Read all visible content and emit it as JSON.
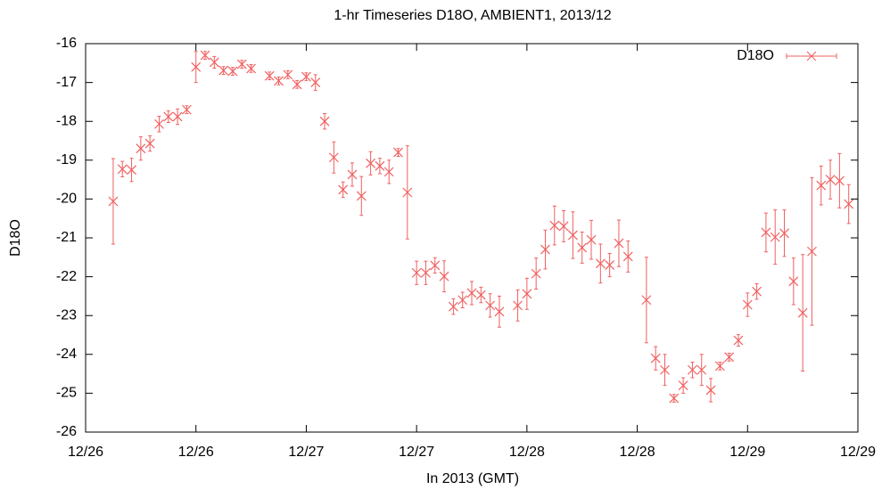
{
  "chart_data": {
    "type": "errorbar",
    "title": "1-hr Timeseries D18O, AMBIENT1, 2013/12",
    "xlabel": "In 2013 (GMT)",
    "ylabel": "D18O",
    "xlim": [
      0,
      84
    ],
    "xticks": [
      {
        "value": 0,
        "label": "12/26"
      },
      {
        "value": 12,
        "label": "12/26"
      },
      {
        "value": 24,
        "label": "12/27"
      },
      {
        "value": 36,
        "label": "12/27"
      },
      {
        "value": 48,
        "label": "12/28"
      },
      {
        "value": 60,
        "label": "12/28"
      },
      {
        "value": 72,
        "label": "12/29"
      },
      {
        "value": 84,
        "label": "12/29"
      }
    ],
    "ylim": [
      -26,
      -16
    ],
    "yticks": [
      -26,
      -25,
      -24,
      -23,
      -22,
      -21,
      -20,
      -19,
      -18,
      -17,
      -16
    ],
    "grid": false,
    "legend": "upper right",
    "series": [
      {
        "name": "D18O",
        "color": "#f06060",
        "x": [
          3,
          4,
          5,
          6,
          7,
          8,
          9,
          10,
          11,
          12,
          13,
          14,
          15,
          16,
          17,
          18,
          20,
          21,
          22,
          23,
          24,
          25,
          26,
          27,
          28,
          29,
          30,
          31,
          32,
          33,
          34,
          35,
          36,
          37,
          38,
          39,
          40,
          41,
          42,
          43,
          44,
          45,
          47,
          48,
          49,
          50,
          51,
          52,
          53,
          54,
          55,
          56,
          57,
          58,
          59,
          61,
          62,
          63,
          64,
          65,
          66,
          67,
          68,
          69,
          70,
          71,
          72,
          73,
          74,
          75,
          76,
          77,
          78,
          79,
          80,
          81,
          82,
          83
        ],
        "values": [
          -20.06,
          -19.23,
          -19.25,
          -18.7,
          -18.57,
          -18.07,
          -17.88,
          -17.88,
          -17.7,
          -16.6,
          -16.3,
          -16.48,
          -16.69,
          -16.71,
          -16.53,
          -16.64,
          -16.83,
          -16.96,
          -16.8,
          -17.05,
          -16.85,
          -17.0,
          -18.0,
          -18.93,
          -19.76,
          -19.37,
          -19.92,
          -19.08,
          -19.15,
          -19.3,
          -18.8,
          -19.83,
          -21.9,
          -21.9,
          -21.71,
          -21.99,
          -22.77,
          -22.6,
          -22.42,
          -22.47,
          -22.74,
          -22.9,
          -22.74,
          -22.44,
          -21.92,
          -21.3,
          -20.68,
          -20.7,
          -20.93,
          -21.25,
          -21.05,
          -21.66,
          -21.7,
          -21.14,
          -21.48,
          -22.6,
          -24.1,
          -24.4,
          -25.13,
          -24.8,
          -24.4,
          -24.4,
          -24.92,
          -24.3,
          -24.07,
          -23.64,
          -22.72,
          -22.38,
          -20.86,
          -20.98,
          -20.88,
          -22.12,
          -22.93,
          -21.35,
          -19.65,
          -19.5,
          -19.53,
          -20.13
        ],
        "errors": [
          1.1,
          0.2,
          0.3,
          0.3,
          0.2,
          0.2,
          0.15,
          0.2,
          0.1,
          0.4,
          0.1,
          0.15,
          0.1,
          0.1,
          0.1,
          0.1,
          0.1,
          0.1,
          0.1,
          0.1,
          0.1,
          0.2,
          0.2,
          0.4,
          0.2,
          0.3,
          0.5,
          0.3,
          0.2,
          0.3,
          0.1,
          1.2,
          0.3,
          0.3,
          0.2,
          0.4,
          0.2,
          0.2,
          0.3,
          0.2,
          0.3,
          0.4,
          0.4,
          0.4,
          0.4,
          0.5,
          0.5,
          0.4,
          0.6,
          0.4,
          0.5,
          0.5,
          0.3,
          0.6,
          0.4,
          1.1,
          0.3,
          0.4,
          0.1,
          0.2,
          0.2,
          0.4,
          0.3,
          0.1,
          0.1,
          0.15,
          0.3,
          0.2,
          0.5,
          0.7,
          0.6,
          0.6,
          1.5,
          1.9,
          0.5,
          0.5,
          0.7,
          0.5
        ]
      }
    ]
  }
}
